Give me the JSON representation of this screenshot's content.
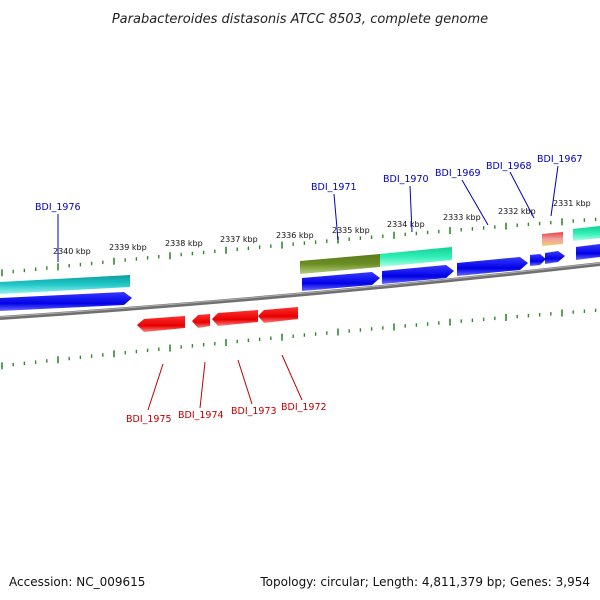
{
  "title": "Parabacteroides distasonis ATCC 8503, complete genome",
  "footer": {
    "accession": "Accession: NC_009615",
    "summary": "Topology: circular; Length: 4,811,379 bp; Genes: 3,954"
  },
  "colors": {
    "backbone": "#808080",
    "tick": "#2f8a2f",
    "forward_label": "#0000c0",
    "reverse_label": "#c00000",
    "cds_forward": "#0000ee",
    "cds_reverse": "#ee0000",
    "feature_cyan": "#12b8b8",
    "feature_olive": "#6b8e23",
    "feature_mint": "#22e6a8"
  },
  "scale_ticks": [
    "2340 kbp",
    "2339 kbp",
    "2338 kbp",
    "2337 kbp",
    "2336 kbp",
    "2335 kbp",
    "2334 kbp",
    "2333 kbp",
    "2332 kbp",
    "2331 kbp"
  ],
  "forward_genes": [
    "BDI_1976",
    "BDI_1971",
    "BDI_1970",
    "BDI_1969",
    "BDI_1968",
    "BDI_1967"
  ],
  "reverse_genes": [
    "BDI_1975",
    "BDI_1974",
    "BDI_1973",
    "BDI_1972"
  ]
}
